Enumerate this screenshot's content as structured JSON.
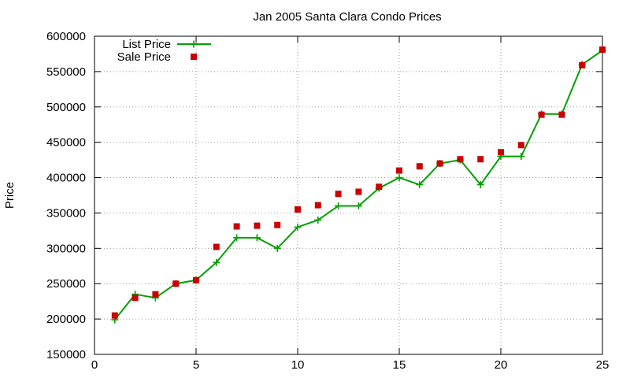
{
  "chart_data": {
    "type": "line",
    "title": "Jan 2005 Santa Clara Condo Prices",
    "xlabel": "",
    "ylabel": "Price",
    "xlim": [
      0,
      25
    ],
    "ylim": [
      150000,
      600000
    ],
    "xticks": [
      "0",
      "5",
      "10",
      "15",
      "20",
      "25"
    ],
    "yticks": [
      "150000",
      "200000",
      "250000",
      "300000",
      "350000",
      "400000",
      "450000",
      "500000",
      "550000",
      "600000"
    ],
    "grid": true,
    "legend_position": "top-left",
    "x": [
      1,
      2,
      3,
      4,
      5,
      6,
      7,
      8,
      9,
      10,
      11,
      12,
      13,
      14,
      15,
      16,
      17,
      18,
      19,
      20,
      21,
      22,
      23,
      24,
      25
    ],
    "series": [
      {
        "name": "List Price",
        "style": "line-with-plus-markers",
        "color": "#00a000",
        "values": [
          199000,
          235000,
          230000,
          250000,
          255000,
          280000,
          315000,
          315000,
          300000,
          330000,
          340000,
          360000,
          360000,
          385000,
          400000,
          390000,
          420000,
          425000,
          390000,
          430000,
          430000,
          490000,
          490000,
          560000,
          580000
        ]
      },
      {
        "name": "Sale Price",
        "style": "square-markers",
        "color": "#cc0000",
        "values": [
          205000,
          230000,
          235000,
          250000,
          255000,
          302000,
          331000,
          332000,
          333000,
          355000,
          361000,
          377000,
          380000,
          387000,
          410000,
          416000,
          420000,
          426000,
          426000,
          436000,
          446000,
          489000,
          489000,
          559000,
          581000
        ]
      }
    ]
  }
}
